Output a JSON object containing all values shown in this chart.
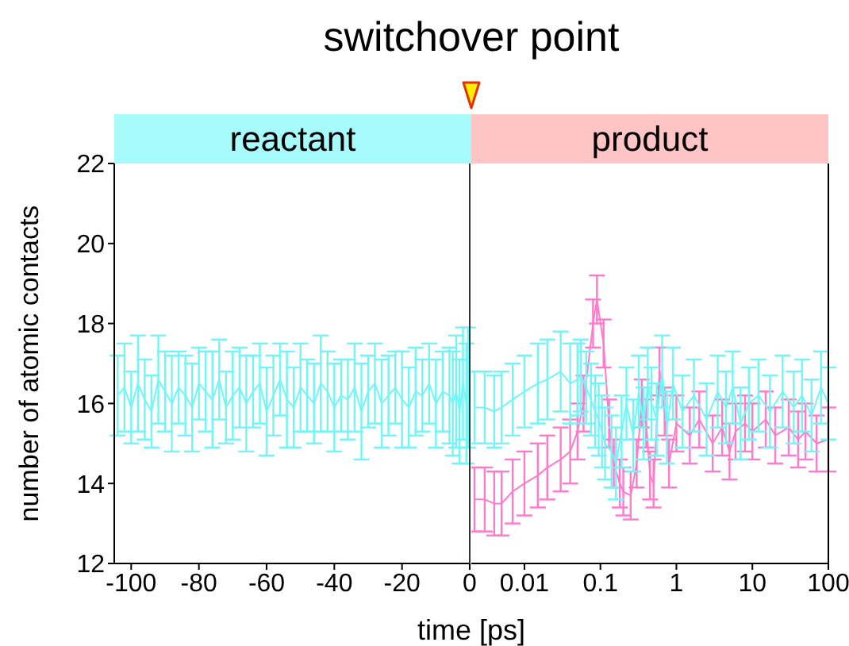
{
  "chart_data": [
    {
      "type": "line",
      "title": "switchover point",
      "xlabel": "time [ps]",
      "ylabel": "number of atomic contacts",
      "xlim": [
        -105,
        0
      ],
      "xticks": [
        -100,
        -80,
        -60,
        -40,
        -20,
        0
      ],
      "ylim": [
        12,
        22
      ],
      "yticks": [
        12,
        14,
        16,
        18,
        20,
        22
      ],
      "grid": false,
      "legend": false,
      "marker": "none",
      "annotations": [
        "reactant"
      ],
      "series": [
        {
          "color": "#70f6f6",
          "x": [
            -104,
            -102,
            -100,
            -98,
            -96,
            -94,
            -92,
            -90,
            -88,
            -86,
            -84,
            -82,
            -80,
            -78,
            -76,
            -74,
            -72,
            -70,
            -68,
            -66,
            -64,
            -62,
            -60,
            -58,
            -56,
            -54,
            -52,
            -50,
            -48,
            -46,
            -44,
            -42,
            -40,
            -38,
            -36,
            -34,
            -32,
            -30,
            -28,
            -26,
            -24,
            -22,
            -20,
            -18,
            -16,
            -14,
            -12,
            -10,
            -8,
            -6,
            -5,
            -4,
            -3,
            -2,
            -1,
            -0.5
          ],
          "values": [
            16.2,
            16.4,
            15.9,
            16.5,
            16.1,
            15.8,
            16.6,
            16.3,
            16.0,
            16.4,
            16.2,
            15.9,
            16.5,
            16.3,
            16.1,
            16.6,
            15.9,
            16.2,
            16.4,
            16.0,
            16.3,
            16.5,
            15.8,
            16.2,
            16.6,
            16.1,
            15.9,
            16.4,
            16.2,
            16.0,
            16.5,
            16.3,
            15.9,
            16.2,
            16.1,
            16.4,
            15.8,
            16.3,
            16.5,
            16.0,
            16.2,
            16.4,
            16.1,
            15.9,
            16.3,
            16.2,
            16.5,
            16.0,
            16.3,
            16.2,
            16.0,
            16.3,
            15.8,
            16.5,
            16.0,
            16.4
          ],
          "errors": [
            1.0,
            1.1,
            0.9,
            1.2,
            1.0,
            0.9,
            1.1,
            1.0,
            1.2,
            0.9,
            1.0,
            1.1,
            0.9,
            1.0,
            1.2,
            1.0,
            0.9,
            1.1,
            1.0,
            1.2,
            0.9,
            1.0,
            1.1,
            1.0,
            0.9,
            1.2,
            1.0,
            1.1,
            0.9,
            1.0,
            1.2,
            1.0,
            1.1,
            0.9,
            1.0,
            1.1,
            1.2,
            0.9,
            1.0,
            1.1,
            1.0,
            0.9,
            1.2,
            1.0,
            1.1,
            0.9,
            1.0,
            1.1,
            1.0,
            1.2,
            1.3,
            1.4,
            1.3,
            1.4,
            1.5,
            1.5
          ]
        }
      ]
    },
    {
      "type": "line",
      "xlim": [
        0.002,
        100
      ],
      "xticks": [
        0.01,
        0.1,
        1,
        10,
        100
      ],
      "ylim": [
        12,
        22
      ],
      "yticks": [
        12,
        14,
        16,
        18,
        20,
        22
      ],
      "log": "x",
      "tick_labels": "x",
      "grid": false,
      "legend": false,
      "marker": "none",
      "annotations": [
        "product"
      ],
      "series": [
        {
          "color": "#ff7acb",
          "x": [
            0.0022,
            0.003,
            0.004,
            0.005,
            0.007,
            0.01,
            0.015,
            0.02,
            0.03,
            0.04,
            0.05,
            0.06,
            0.08,
            0.09,
            0.11,
            0.13,
            0.15,
            0.18,
            0.2,
            0.25,
            0.3,
            0.35,
            0.4,
            0.45,
            0.5,
            0.6,
            0.7,
            0.8,
            1,
            1.5,
            2,
            3,
            4,
            5,
            6,
            8,
            10,
            15,
            20,
            30,
            40,
            50,
            70,
            100
          ],
          "values": [
            13.6,
            13.6,
            13.5,
            13.5,
            13.8,
            14.0,
            14.2,
            14.4,
            14.6,
            14.8,
            15.3,
            16.0,
            18.0,
            18.6,
            17.5,
            15.5,
            14.5,
            14.0,
            13.8,
            13.7,
            14.5,
            16.0,
            15.5,
            14.2,
            14.0,
            16.8,
            15.8,
            14.5,
            15.5,
            15.2,
            15.6,
            15.0,
            15.4,
            14.8,
            15.3,
            15.5,
            15.3,
            15.6,
            15.2,
            15.4,
            15.1,
            15.3,
            15.0,
            15.1
          ],
          "errors": [
            0.8,
            0.8,
            0.8,
            0.8,
            0.8,
            0.8,
            0.8,
            0.8,
            0.8,
            0.8,
            0.7,
            0.7,
            0.6,
            0.6,
            0.6,
            0.6,
            0.6,
            0.6,
            0.6,
            0.6,
            0.6,
            0.6,
            0.6,
            0.6,
            0.6,
            0.6,
            0.6,
            0.6,
            0.7,
            0.7,
            0.7,
            0.7,
            0.7,
            0.7,
            0.7,
            0.7,
            0.7,
            0.7,
            0.7,
            0.7,
            0.7,
            0.7,
            0.7,
            0.8
          ]
        },
        {
          "color": "#70f6f6",
          "x": [
            0.0022,
            0.003,
            0.004,
            0.005,
            0.007,
            0.01,
            0.015,
            0.02,
            0.03,
            0.04,
            0.05,
            0.055,
            0.065,
            0.075,
            0.085,
            0.095,
            0.105,
            0.115,
            0.14,
            0.16,
            0.19,
            0.22,
            0.27,
            0.32,
            0.37,
            0.42,
            0.47,
            0.55,
            0.65,
            0.75,
            0.9,
            1.2,
            1.7,
            2.5,
            3.5,
            4.5,
            5.5,
            7,
            9,
            12,
            17,
            25,
            35,
            45,
            60,
            80,
            100
          ],
          "values": [
            15.9,
            15.9,
            15.8,
            15.9,
            16.1,
            16.3,
            16.5,
            16.6,
            16.8,
            16.5,
            16.6,
            16.7,
            16.4,
            16.1,
            15.8,
            15.6,
            15.3,
            15.0,
            14.8,
            14.5,
            15.3,
            16.0,
            15.2,
            16.3,
            15.5,
            16.5,
            16.0,
            15.6,
            16.8,
            15.4,
            16.5,
            15.8,
            16.2,
            15.6,
            16.3,
            15.9,
            16.4,
            15.5,
            16.0,
            16.2,
            15.8,
            16.3,
            15.9,
            16.2,
            15.7,
            16.4,
            16.0
          ],
          "errors": [
            0.9,
            0.9,
            0.9,
            0.9,
            0.9,
            0.9,
            1.0,
            1.0,
            1.0,
            1.0,
            0.9,
            0.9,
            0.9,
            0.9,
            0.9,
            0.9,
            0.9,
            0.9,
            0.9,
            0.9,
            0.9,
            0.9,
            0.9,
            0.9,
            0.9,
            0.9,
            0.9,
            0.9,
            0.9,
            0.9,
            0.9,
            0.9,
            0.9,
            0.9,
            0.9,
            0.9,
            0.9,
            0.9,
            0.9,
            0.9,
            0.9,
            0.9,
            0.9,
            0.9,
            0.9,
            0.9,
            0.9
          ]
        }
      ]
    }
  ]
}
